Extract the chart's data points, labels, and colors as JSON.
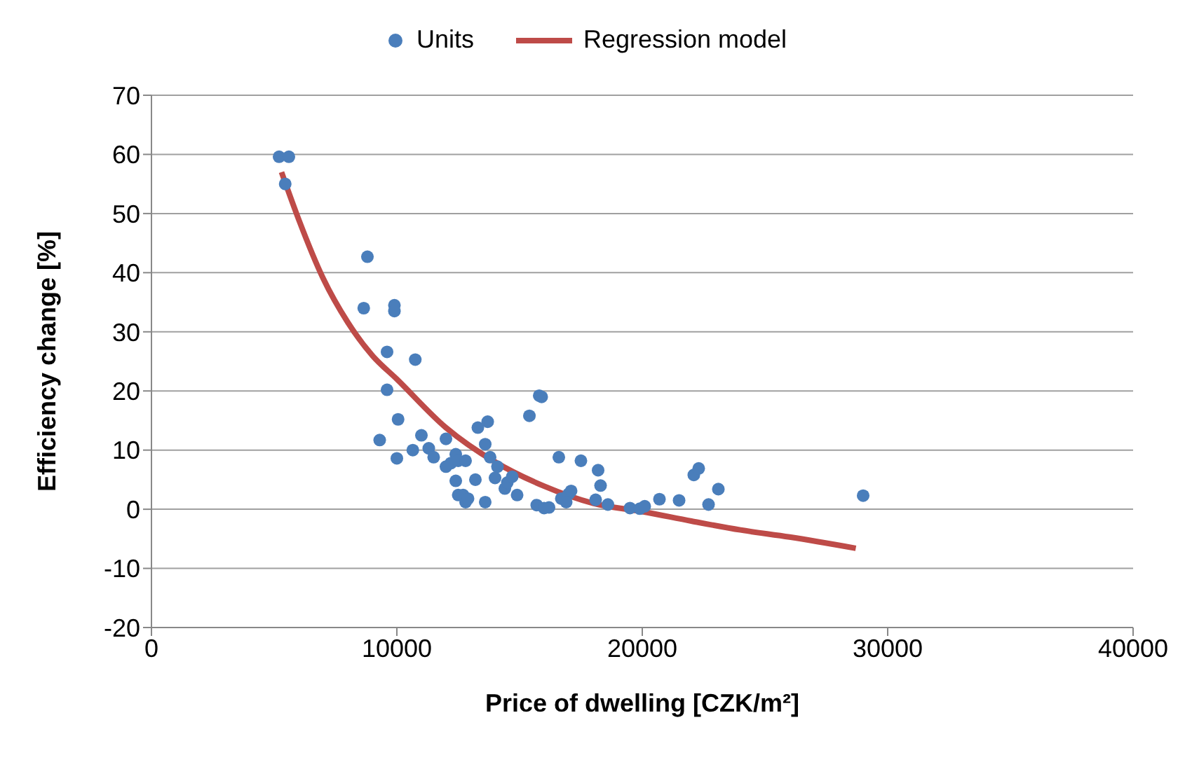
{
  "chart_data": {
    "type": "scatter",
    "xlabel": "Price of dwelling [CZK/m²]",
    "ylabel": "Efficiency change [%]",
    "xlim": [
      0,
      40000
    ],
    "xticks": [
      0,
      10000,
      20000,
      30000,
      40000
    ],
    "ylim": [
      -20,
      70
    ],
    "yticks": [
      -20,
      -10,
      0,
      10,
      20,
      30,
      40,
      50,
      60,
      70
    ],
    "grid": "y",
    "legend": "top",
    "series": [
      {
        "name": "Units",
        "color": "#4a7ebb",
        "marker": "circle",
        "x": [
          5200,
          5600,
          5450,
          8800,
          8650,
          9900,
          9900,
          9600,
          10750,
          9600,
          10050,
          9300,
          10000,
          10650,
          11000,
          11300,
          11500,
          12000,
          12200,
          12000,
          12400,
          12500,
          12400,
          12500,
          12800,
          12700,
          12900,
          12800,
          13200,
          13300,
          13600,
          13600,
          13700,
          13800,
          14000,
          14100,
          14400,
          14500,
          14700,
          14900,
          15400,
          15800,
          15900,
          15700,
          16000,
          16200,
          16600,
          16700,
          17000,
          16900,
          17100,
          17500,
          18100,
          18200,
          18300,
          18600,
          19500,
          19900,
          20100,
          20700,
          21500,
          22100,
          22300,
          22700,
          23100,
          29000
        ],
        "values": [
          59.6,
          59.6,
          55,
          42.7,
          34,
          34.5,
          33.5,
          26.6,
          25.3,
          20.2,
          15.2,
          11.7,
          8.6,
          10,
          12.5,
          10.3,
          8.8,
          7.2,
          7.8,
          11.9,
          9.3,
          8.2,
          4.8,
          2.4,
          1.2,
          2.4,
          1.8,
          8.2,
          5,
          13.8,
          11,
          1.2,
          14.8,
          8.8,
          5.3,
          7.2,
          3.5,
          4.5,
          5.5,
          2.4,
          15.8,
          19.2,
          19,
          0.7,
          0.2,
          0.3,
          8.8,
          1.8,
          2.6,
          1.2,
          3.1,
          8.2,
          1.6,
          6.6,
          4,
          0.8,
          0.2,
          0.1,
          0.5,
          1.7,
          1.5,
          5.8,
          6.9,
          0.8,
          3.4,
          2.3
        ]
      },
      {
        "name": "Regression model",
        "type": "line",
        "color": "#be4b48",
        "marker": "none",
        "x": [
          5300,
          6000,
          7000,
          8000,
          9000,
          10000,
          12000,
          14000,
          16000,
          18000,
          20000,
          22000,
          24000,
          26000,
          28700
        ],
        "values": [
          57,
          49,
          39,
          31.6,
          26,
          22,
          13.8,
          8,
          3.9,
          1,
          -0.4,
          -2,
          -3.5,
          -4.7,
          -6.6
        ]
      }
    ]
  }
}
